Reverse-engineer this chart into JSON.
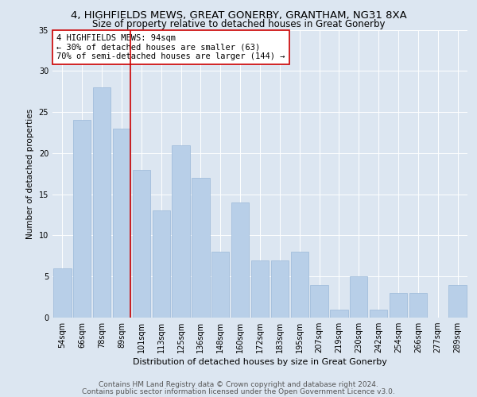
{
  "title1": "4, HIGHFIELDS MEWS, GREAT GONERBY, GRANTHAM, NG31 8XA",
  "title2": "Size of property relative to detached houses in Great Gonerby",
  "xlabel": "Distribution of detached houses by size in Great Gonerby",
  "ylabel": "Number of detached properties",
  "categories": [
    "54sqm",
    "66sqm",
    "78sqm",
    "89sqm",
    "101sqm",
    "113sqm",
    "125sqm",
    "136sqm",
    "148sqm",
    "160sqm",
    "172sqm",
    "183sqm",
    "195sqm",
    "207sqm",
    "219sqm",
    "230sqm",
    "242sqm",
    "254sqm",
    "266sqm",
    "277sqm",
    "289sqm"
  ],
  "values": [
    6,
    24,
    28,
    23,
    18,
    13,
    21,
    17,
    8,
    14,
    7,
    7,
    8,
    4,
    1,
    5,
    1,
    3,
    3,
    0,
    4
  ],
  "bar_color": "#b8cfe8",
  "bar_edge_color": "#9ab8d8",
  "marker_bin_index": 3,
  "marker_color": "#cc0000",
  "annotation_line1": "4 HIGHFIELDS MEWS: 94sqm",
  "annotation_line2": "← 30% of detached houses are smaller (63)",
  "annotation_line3": "70% of semi-detached houses are larger (144) →",
  "annotation_box_color": "#ffffff",
  "annotation_box_edge": "#cc0000",
  "ylim": [
    0,
    35
  ],
  "yticks": [
    0,
    5,
    10,
    15,
    20,
    25,
    30,
    35
  ],
  "bg_color": "#dce6f1",
  "footer1": "Contains HM Land Registry data © Crown copyright and database right 2024.",
  "footer2": "Contains public sector information licensed under the Open Government Licence v3.0.",
  "title1_fontsize": 9.5,
  "title2_fontsize": 8.5,
  "xlabel_fontsize": 8,
  "ylabel_fontsize": 7.5,
  "tick_fontsize": 7,
  "annot_fontsize": 7.5,
  "footer_fontsize": 6.5
}
